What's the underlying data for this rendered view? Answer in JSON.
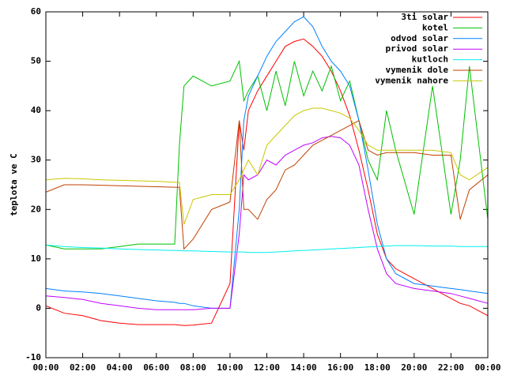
{
  "chart_data": {
    "type": "line",
    "y_label": "teplota ve C",
    "x": [
      0,
      1,
      2,
      3,
      4,
      5,
      6,
      7,
      7.25,
      7.5,
      8,
      9,
      10,
      10.5,
      10.75,
      11,
      11.5,
      12,
      12.5,
      13,
      13.5,
      14,
      14.5,
      15,
      15.5,
      16,
      16.5,
      17,
      17.5,
      18,
      18.5,
      19,
      20,
      21,
      22,
      22.5,
      23,
      24
    ],
    "xlim": [
      0,
      24
    ],
    "xticks": [
      {
        "value": 0,
        "label": "00:00"
      },
      {
        "value": 2,
        "label": "02:00"
      },
      {
        "value": 4,
        "label": "04:00"
      },
      {
        "value": 6,
        "label": "06:00"
      },
      {
        "value": 8,
        "label": "08:00"
      },
      {
        "value": 10,
        "label": "10:00"
      },
      {
        "value": 12,
        "label": "12:00"
      },
      {
        "value": 14,
        "label": "14:00"
      },
      {
        "value": 16,
        "label": "16:00"
      },
      {
        "value": 18,
        "label": "18:00"
      },
      {
        "value": 20,
        "label": "20:00"
      },
      {
        "value": 22,
        "label": "22:00"
      },
      {
        "value": 24,
        "label": "00:00"
      }
    ],
    "ylim": [
      -10,
      60
    ],
    "yticks": [
      -10,
      0,
      10,
      20,
      30,
      40,
      50,
      60
    ],
    "grid": false,
    "legend": "top-right",
    "series": [
      {
        "name": "3ti solar",
        "color": "#ff0000",
        "values": [
          0.5,
          -1,
          -1.5,
          -2.5,
          -3,
          -3.3,
          -3.3,
          -3.3,
          -3.4,
          -3.5,
          -3.4,
          -3,
          5,
          38,
          32,
          40,
          44,
          47,
          50,
          53,
          54,
          54.5,
          53,
          51,
          48,
          44,
          39,
          32,
          24,
          15,
          10,
          8,
          6,
          4,
          2,
          1,
          0.5,
          -1.5
        ]
      },
      {
        "name": "kotel",
        "color": "#00c000",
        "values": [
          12.8,
          12,
          12,
          12,
          12.5,
          13,
          13,
          13,
          33,
          45,
          47,
          45,
          46,
          50,
          42,
          44,
          47,
          40,
          48,
          41,
          50,
          43,
          48,
          44,
          49,
          42,
          46,
          38,
          30,
          26,
          40,
          32,
          19,
          45,
          19,
          30,
          49,
          18
        ]
      },
      {
        "name": "odvod solar",
        "color": "#0080ff",
        "values": [
          4,
          3.5,
          3.3,
          3,
          2.5,
          2,
          1.5,
          1.2,
          1,
          1,
          0.5,
          0,
          0,
          20,
          38,
          43,
          47,
          51,
          54,
          56,
          58,
          59,
          57,
          53,
          50,
          48,
          45,
          38,
          28,
          17,
          10,
          7,
          5,
          4.5,
          4,
          3.8,
          3.5,
          3
        ]
      },
      {
        "name": "privod solar",
        "color": "#c000ff",
        "values": [
          2.5,
          2.2,
          1.8,
          1,
          0.5,
          0,
          -0.3,
          -0.3,
          -0.3,
          -0.3,
          -0.3,
          0,
          0,
          15,
          27,
          26,
          27,
          30,
          29,
          31,
          32,
          33,
          33.5,
          34.5,
          34.8,
          34.5,
          33,
          29,
          20,
          12,
          7,
          5,
          4,
          3.5,
          3,
          2.5,
          2,
          1
        ]
      },
      {
        "name": "kutloch",
        "color": "#00eeee",
        "values": [
          12.8,
          12.5,
          12.3,
          12.2,
          12,
          11.9,
          11.8,
          11.7,
          11.7,
          11.6,
          11.6,
          11.5,
          11.4,
          11.4,
          11.4,
          11.3,
          11.3,
          11.3,
          11.4,
          11.5,
          11.6,
          11.7,
          11.8,
          11.9,
          12,
          12.1,
          12.2,
          12.3,
          12.4,
          12.5,
          12.6,
          12.7,
          12.7,
          12.6,
          12.6,
          12.5,
          12.5,
          12.5
        ]
      },
      {
        "name": "vymenik dole",
        "color": "#c04000",
        "values": [
          23.5,
          25,
          25,
          24.9,
          24.8,
          24.7,
          24.6,
          24.5,
          24.5,
          12,
          14,
          20,
          21.5,
          38,
          20,
          20,
          18,
          22,
          24,
          28,
          29,
          31,
          33,
          34,
          35,
          36,
          37,
          38,
          32,
          31,
          31.5,
          31.5,
          31.5,
          31,
          31,
          18,
          24,
          27
        ]
      },
      {
        "name": "vymenik nahore",
        "color": "#c8c800",
        "values": [
          26,
          26.3,
          26.2,
          26,
          25.9,
          25.8,
          25.7,
          25.5,
          25.5,
          17,
          22,
          23,
          23,
          26,
          28,
          30,
          27,
          33,
          35,
          37,
          39,
          40,
          40.5,
          40.5,
          40,
          39.5,
          38.5,
          36,
          33,
          32,
          32,
          32,
          32,
          32,
          31.5,
          27,
          26,
          28.5
        ]
      }
    ]
  }
}
